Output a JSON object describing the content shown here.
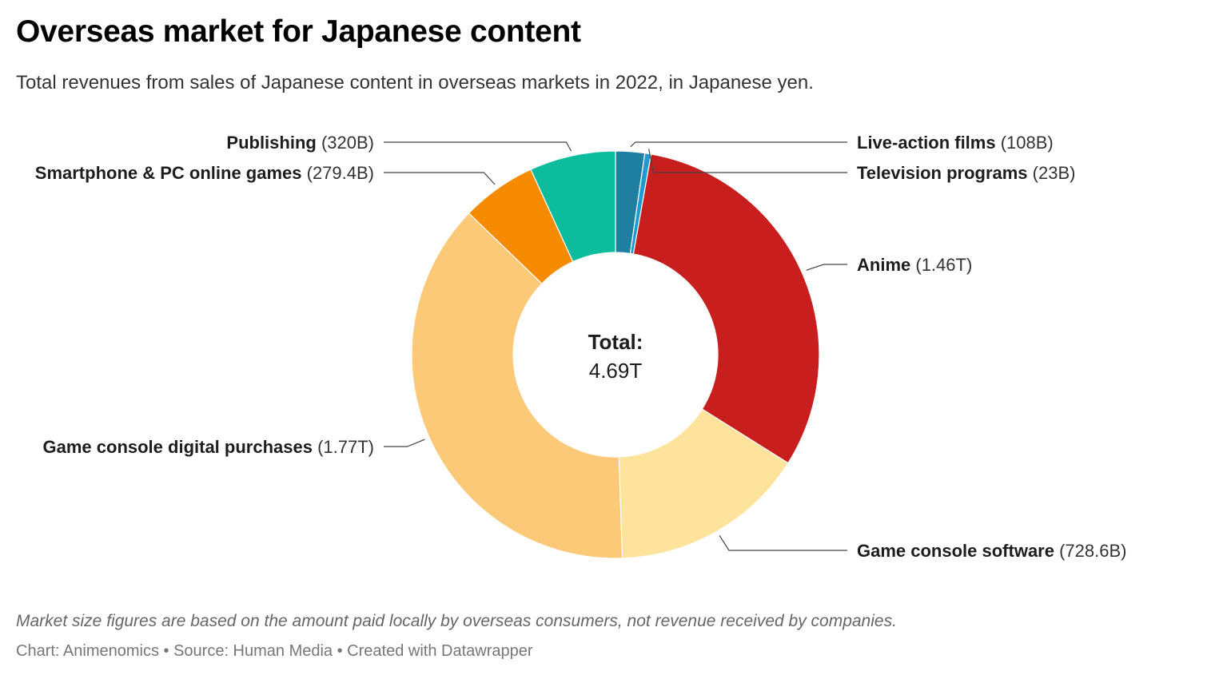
{
  "header": {
    "title": "Overseas market for Japanese content",
    "subtitle": "Total revenues from sales of Japanese content in overseas markets in 2022, in Japanese yen."
  },
  "chart_data": {
    "type": "pie",
    "donut": true,
    "center_label": {
      "title": "Total:",
      "value": "4.69T"
    },
    "slices": [
      {
        "name": "Live-action films",
        "value": 108,
        "value_label": "(108B)",
        "color": "#1f7fa0"
      },
      {
        "name": "Television programs",
        "value": 23,
        "value_label": "(23B)",
        "color": "#1e9ad1"
      },
      {
        "name": "Anime",
        "value": 1460,
        "value_label": "(1.46T)",
        "color": "#c81e1e"
      },
      {
        "name": "Game console software",
        "value": 728.6,
        "value_label": "(728.6B)",
        "color": "#fde39c"
      },
      {
        "name": "Game console digital purchases",
        "value": 1770,
        "value_label": "(1.77T)",
        "color": "#fcc978"
      },
      {
        "name": "Smartphone & PC online games",
        "value": 279.4,
        "value_label": "(279.4B)",
        "color": "#f78b00"
      },
      {
        "name": "Publishing",
        "value": 320,
        "value_label": "(320B)",
        "color": "#0cbc9d"
      }
    ]
  },
  "footer": {
    "note": "Market size figures are based on the amount paid locally by overseas consumers, not revenue received by companies.",
    "credit": "Chart: Animenomics • Source: Human Media • Created with Datawrapper"
  }
}
